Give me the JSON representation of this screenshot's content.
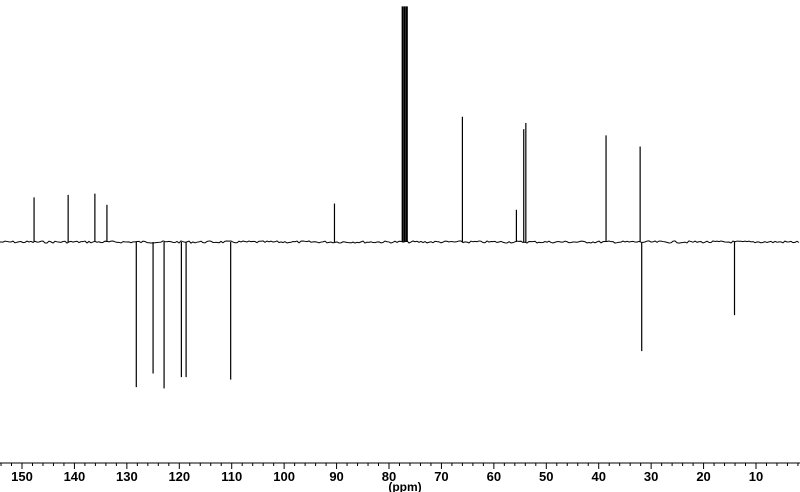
{
  "chart_data": {
    "type": "nmr-spectrum",
    "title": "",
    "xlabel": "(ppm)",
    "ylabel": "",
    "x_reversed": true,
    "xlim": [
      155,
      2
    ],
    "x_ticks": [
      150,
      140,
      130,
      120,
      110,
      100,
      90,
      80,
      70,
      60,
      50,
      40,
      30,
      20,
      10
    ],
    "grid": false,
    "legend": "none",
    "baseline_intensity": 0,
    "intensity_unit": "relative (baseline = 0, positive up, negative down)",
    "ylim": [
      -1.2,
      1.9
    ],
    "peaks": [
      {
        "ppm": 147.7,
        "intensity": 0.36
      },
      {
        "ppm": 141.2,
        "intensity": 0.38
      },
      {
        "ppm": 136.1,
        "intensity": 0.39
      },
      {
        "ppm": 133.8,
        "intensity": 0.3
      },
      {
        "ppm": 128.2,
        "intensity": -1.17
      },
      {
        "ppm": 125.0,
        "intensity": -1.06
      },
      {
        "ppm": 122.9,
        "intensity": -1.18
      },
      {
        "ppm": 119.6,
        "intensity": -1.09
      },
      {
        "ppm": 118.7,
        "intensity": -1.09
      },
      {
        "ppm": 110.2,
        "intensity": -1.11
      },
      {
        "ppm": 90.4,
        "intensity": 0.31
      },
      {
        "ppm": 77.4,
        "intensity": 1.9
      },
      {
        "ppm": 77.0,
        "intensity": 1.9
      },
      {
        "ppm": 76.6,
        "intensity": 1.9
      },
      {
        "ppm": 66.0,
        "intensity": 1.01
      },
      {
        "ppm": 55.7,
        "intensity": 0.26
      },
      {
        "ppm": 54.3,
        "intensity": 0.91
      },
      {
        "ppm": 53.9,
        "intensity": 0.96
      },
      {
        "ppm": 38.6,
        "intensity": 0.86
      },
      {
        "ppm": 32.1,
        "intensity": 0.77
      },
      {
        "ppm": 31.8,
        "intensity": -0.88
      },
      {
        "ppm": 14.1,
        "intensity": -0.59
      }
    ],
    "colors": {
      "trace": "#000000",
      "background": "#ffffff"
    }
  }
}
